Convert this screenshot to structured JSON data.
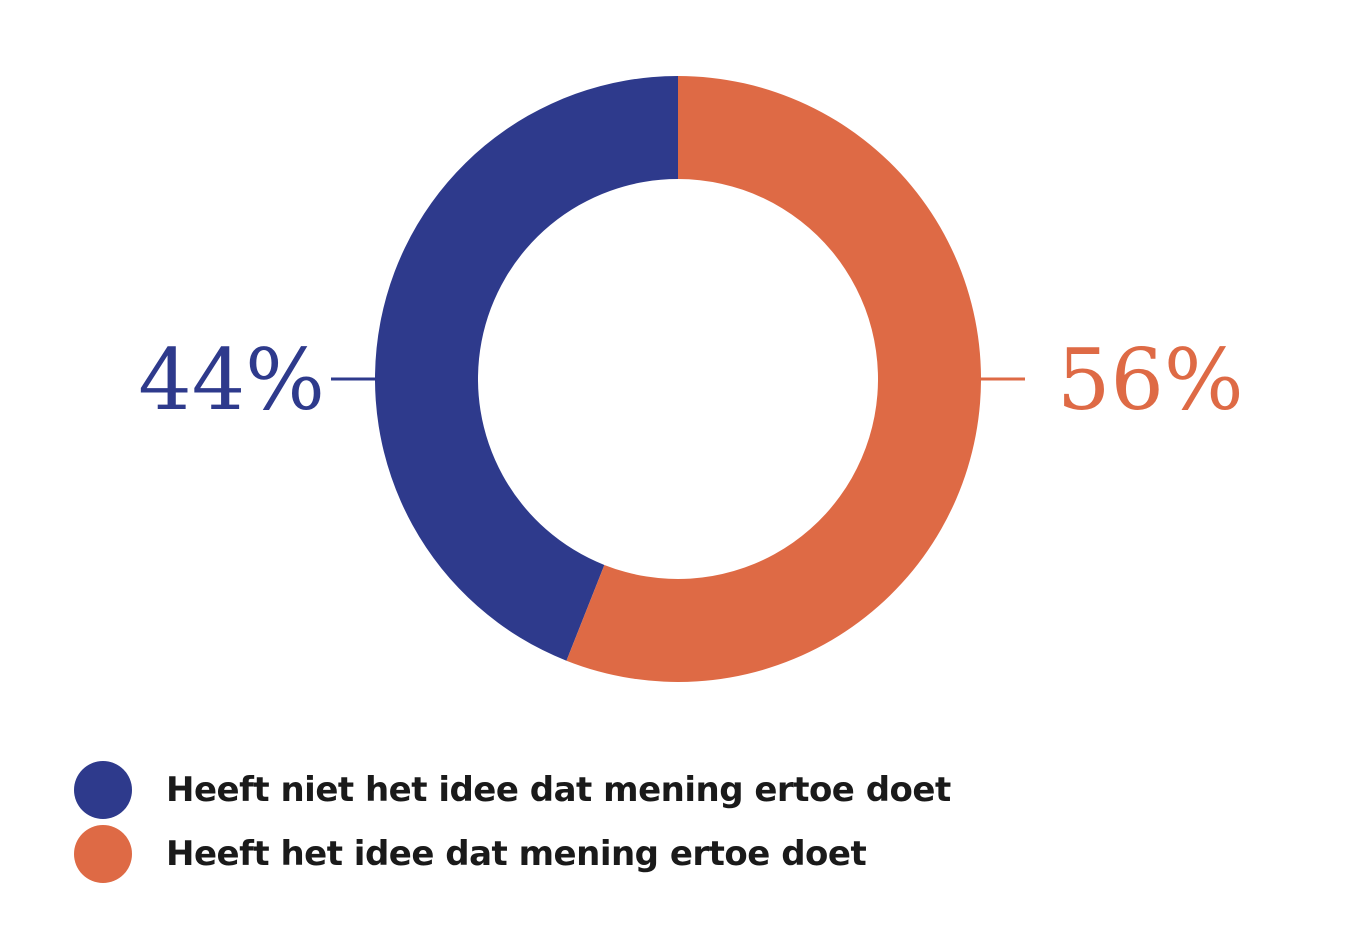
{
  "chart_data": {
    "type": "pie",
    "donut": true,
    "slices": [
      {
        "label": "Heeft niet het idee dat mening ertoe doet",
        "value": 44,
        "value_label": "44%",
        "color": "#2e3a8c"
      },
      {
        "label": "Heeft het idee dat mening ertoe doet",
        "value": 56,
        "value_label": "56%",
        "color": "#de6a45"
      }
    ],
    "legend_position": "bottom-left"
  }
}
